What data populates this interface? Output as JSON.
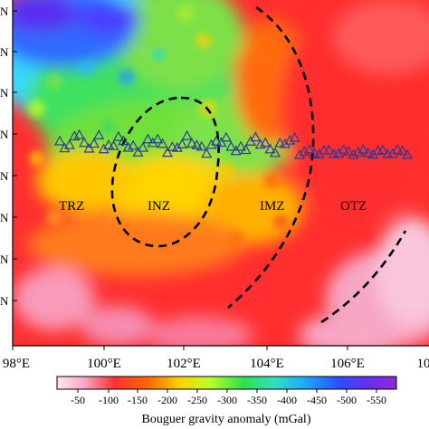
{
  "map": {
    "x_ticks": [
      "98°E",
      "100°E",
      "102°E",
      "104°E",
      "106°E",
      "10"
    ],
    "y_tick_glyph": "N",
    "zones": [
      {
        "id": "trz",
        "label": "TRZ"
      },
      {
        "id": "inz",
        "label": "INZ"
      },
      {
        "id": "imz",
        "label": "IMZ"
      },
      {
        "id": "otz",
        "label": "OTZ"
      }
    ],
    "stations_marker": "triangle"
  },
  "colorbar": {
    "tick_labels": [
      "-50",
      "-100",
      "-150",
      "-200",
      "-250",
      "-300",
      "-350",
      "-400",
      "-450",
      "-500",
      "-550"
    ],
    "caption": "Bouguer gravity anomaly (mGal)",
    "colors": [
      "#fde7f3",
      "#f7a6c4",
      "#ff3030",
      "#ff6a00",
      "#ffd000",
      "#b8ff2a",
      "#2ee04a",
      "#2fe0c0",
      "#20a8ff",
      "#2850ff",
      "#6a2cf0",
      "#8e2bd6"
    ]
  },
  "colors": {
    "station_stroke": "#2a3a9a",
    "boundary": "#000000"
  }
}
